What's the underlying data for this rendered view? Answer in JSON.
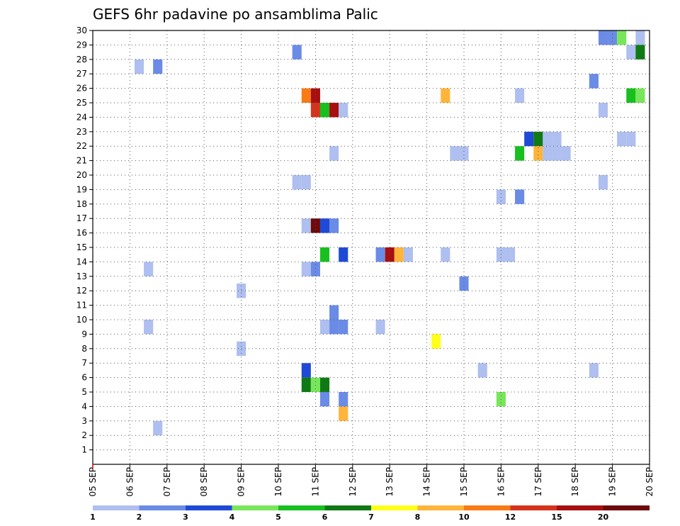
{
  "chart_data": {
    "type": "heatmap",
    "title": "GEFS 6hr padavine po ansamblima Palic",
    "xlabel": "",
    "ylabel": "",
    "x_ticks": [
      "05 SEP",
      "06 SEP",
      "07 SEP",
      "08 SEP",
      "09 SEP",
      "10 SEP",
      "11 SEP",
      "12 SEP",
      "13 SEP",
      "14 SEP",
      "15 SEP",
      "16 SEP",
      "17 SEP",
      "18 SEP",
      "19 SEP",
      "20 SEP"
    ],
    "y_ticks": [
      "1",
      "2",
      "3",
      "4",
      "5",
      "6",
      "7",
      "8",
      "9",
      "10",
      "11",
      "12",
      "13",
      "14",
      "15",
      "16",
      "17",
      "18",
      "19",
      "20",
      "21",
      "22",
      "23",
      "24",
      "25",
      "26",
      "27",
      "28",
      "29",
      "30"
    ],
    "xlim_days": [
      0,
      15
    ],
    "ylim": [
      0,
      30
    ],
    "grid": true,
    "colorbar": {
      "labels": [
        "1",
        "2",
        "3",
        "4",
        "5",
        "6",
        "7",
        "8",
        "10",
        "12",
        "15",
        "20"
      ],
      "colors": [
        "#aebff0",
        "#6a8be6",
        "#1f4ad6",
        "#78e65a",
        "#17c01e",
        "#0f7a14",
        "#ffff1a",
        "#ffb43a",
        "#f97b16",
        "#d6331c",
        "#a80f10",
        "#6e0a0a"
      ]
    },
    "cells": [
      {
        "t": 1.25,
        "m": 27.5,
        "v": 1
      },
      {
        "t": 1.75,
        "m": 27.5,
        "v": 2
      },
      {
        "t": 1.5,
        "m": 13.5,
        "v": 1
      },
      {
        "t": 1.5,
        "m": 9.5,
        "v": 1
      },
      {
        "t": 1.75,
        "m": 2.5,
        "v": 1
      },
      {
        "t": 4.0,
        "m": 12,
        "v": 1
      },
      {
        "t": 4.0,
        "m": 8,
        "v": 1
      },
      {
        "t": 5.5,
        "m": 28.5,
        "v": 2
      },
      {
        "t": 5.5,
        "m": 19.5,
        "v": 1
      },
      {
        "t": 5.75,
        "m": 19.5,
        "v": 1
      },
      {
        "t": 5.75,
        "m": 25.5,
        "v": 9
      },
      {
        "t": 6.0,
        "m": 25.5,
        "v": 11
      },
      {
        "t": 6.0,
        "m": 24.5,
        "v": 10
      },
      {
        "t": 6.25,
        "m": 24.5,
        "v": 5
      },
      {
        "t": 6.5,
        "m": 24.5,
        "v": 11
      },
      {
        "t": 6.75,
        "m": 24.5,
        "v": 1
      },
      {
        "t": 6.5,
        "m": 21.5,
        "v": 1
      },
      {
        "t": 5.75,
        "m": 16.5,
        "v": 1
      },
      {
        "t": 6.0,
        "m": 16.5,
        "v": 12
      },
      {
        "t": 6.25,
        "m": 16.5,
        "v": 3
      },
      {
        "t": 6.5,
        "m": 16.5,
        "v": 2
      },
      {
        "t": 6.25,
        "m": 14.5,
        "v": 5
      },
      {
        "t": 6.75,
        "m": 14.5,
        "v": 3
      },
      {
        "t": 5.75,
        "m": 13.5,
        "v": 1
      },
      {
        "t": 6.0,
        "m": 13.5,
        "v": 2
      },
      {
        "t": 6.5,
        "m": 10.5,
        "v": 2
      },
      {
        "t": 6.25,
        "m": 9.5,
        "v": 1
      },
      {
        "t": 6.5,
        "m": 9.5,
        "v": 2
      },
      {
        "t": 6.75,
        "m": 9.5,
        "v": 2
      },
      {
        "t": 5.75,
        "m": 6.5,
        "v": 3
      },
      {
        "t": 5.75,
        "m": 5.5,
        "v": 6
      },
      {
        "t": 6.0,
        "m": 5.5,
        "v": 4
      },
      {
        "t": 6.25,
        "m": 5.5,
        "v": 6
      },
      {
        "t": 6.25,
        "m": 4.5,
        "v": 2
      },
      {
        "t": 6.75,
        "m": 4.5,
        "v": 2
      },
      {
        "t": 6.75,
        "m": 3.5,
        "v": 8
      },
      {
        "t": 7.75,
        "m": 9.5,
        "v": 1
      },
      {
        "t": 7.75,
        "m": 14.5,
        "v": 2
      },
      {
        "t": 8.0,
        "m": 14.5,
        "v": 11
      },
      {
        "t": 8.25,
        "m": 14.5,
        "v": 8
      },
      {
        "t": 8.5,
        "m": 14.5,
        "v": 1
      },
      {
        "t": 9.25,
        "m": 8.5,
        "v": 7
      },
      {
        "t": 9.5,
        "m": 25.5,
        "v": 8
      },
      {
        "t": 9.5,
        "m": 14.5,
        "v": 1
      },
      {
        "t": 9.75,
        "m": 21.5,
        "v": 1
      },
      {
        "t": 10.0,
        "m": 21.5,
        "v": 1
      },
      {
        "t": 10.0,
        "m": 12.5,
        "v": 2
      },
      {
        "t": 10.5,
        "m": 6.5,
        "v": 1
      },
      {
        "t": 11.0,
        "m": 14.5,
        "v": 1
      },
      {
        "t": 11.25,
        "m": 14.5,
        "v": 1
      },
      {
        "t": 11.0,
        "m": 18.5,
        "v": 1
      },
      {
        "t": 11.0,
        "m": 4.5,
        "v": 4
      },
      {
        "t": 11.5,
        "m": 25.5,
        "v": 1
      },
      {
        "t": 11.5,
        "m": 21.5,
        "v": 5
      },
      {
        "t": 11.5,
        "m": 18.5,
        "v": 2
      },
      {
        "t": 11.75,
        "m": 22.5,
        "v": 3
      },
      {
        "t": 12.0,
        "m": 22.5,
        "v": 6
      },
      {
        "t": 12.25,
        "m": 22.5,
        "v": 1
      },
      {
        "t": 12.5,
        "m": 22.5,
        "v": 1
      },
      {
        "t": 12.0,
        "m": 21.5,
        "v": 8
      },
      {
        "t": 12.25,
        "m": 21.5,
        "v": 1
      },
      {
        "t": 12.5,
        "m": 21.5,
        "v": 1
      },
      {
        "t": 12.75,
        "m": 21.5,
        "v": 1
      },
      {
        "t": 13.5,
        "m": 26.5,
        "v": 2
      },
      {
        "t": 13.5,
        "m": 6.5,
        "v": 1
      },
      {
        "t": 13.75,
        "m": 29.5,
        "v": 2
      },
      {
        "t": 14.0,
        "m": 29.5,
        "v": 2
      },
      {
        "t": 14.25,
        "m": 29.5,
        "v": 4
      },
      {
        "t": 14.75,
        "m": 29.5,
        "v": 1
      },
      {
        "t": 13.75,
        "m": 24.5,
        "v": 1
      },
      {
        "t": 13.75,
        "m": 19.5,
        "v": 1
      },
      {
        "t": 14.5,
        "m": 28.5,
        "v": 1
      },
      {
        "t": 14.75,
        "m": 28.5,
        "v": 6
      },
      {
        "t": 14.5,
        "m": 25.5,
        "v": 5
      },
      {
        "t": 14.75,
        "m": 25.5,
        "v": 4
      },
      {
        "t": 14.25,
        "m": 22.5,
        "v": 1
      },
      {
        "t": 14.5,
        "m": 22.5,
        "v": 1
      }
    ]
  }
}
